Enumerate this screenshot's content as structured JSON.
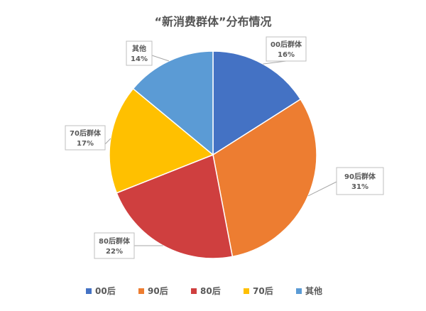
{
  "chart_data": {
    "type": "pie",
    "title": "“新消费群体”分布情况",
    "categories": [
      "00后",
      "90后",
      "80后",
      "70后",
      "其他"
    ],
    "values": [
      16,
      31,
      22,
      17,
      14
    ],
    "value_unit": "%",
    "colors": [
      "#4472c4",
      "#ed7d31",
      "#cf3f3f",
      "#ffc000",
      "#5b9bd5"
    ],
    "start_angle_deg": 0,
    "direction": "clockwise",
    "data_labels": [
      {
        "name": "00后群体",
        "value": "16%"
      },
      {
        "name": "90后群体",
        "value": "31%"
      },
      {
        "name": "80后群体",
        "value": "22%"
      },
      {
        "name": "70后群体",
        "value": "17%"
      },
      {
        "name": "其他",
        "value": "14%"
      }
    ],
    "legend": {
      "placement": "bottom",
      "entries": [
        "00后",
        "90后",
        "80后",
        "70后",
        "其他"
      ]
    }
  }
}
